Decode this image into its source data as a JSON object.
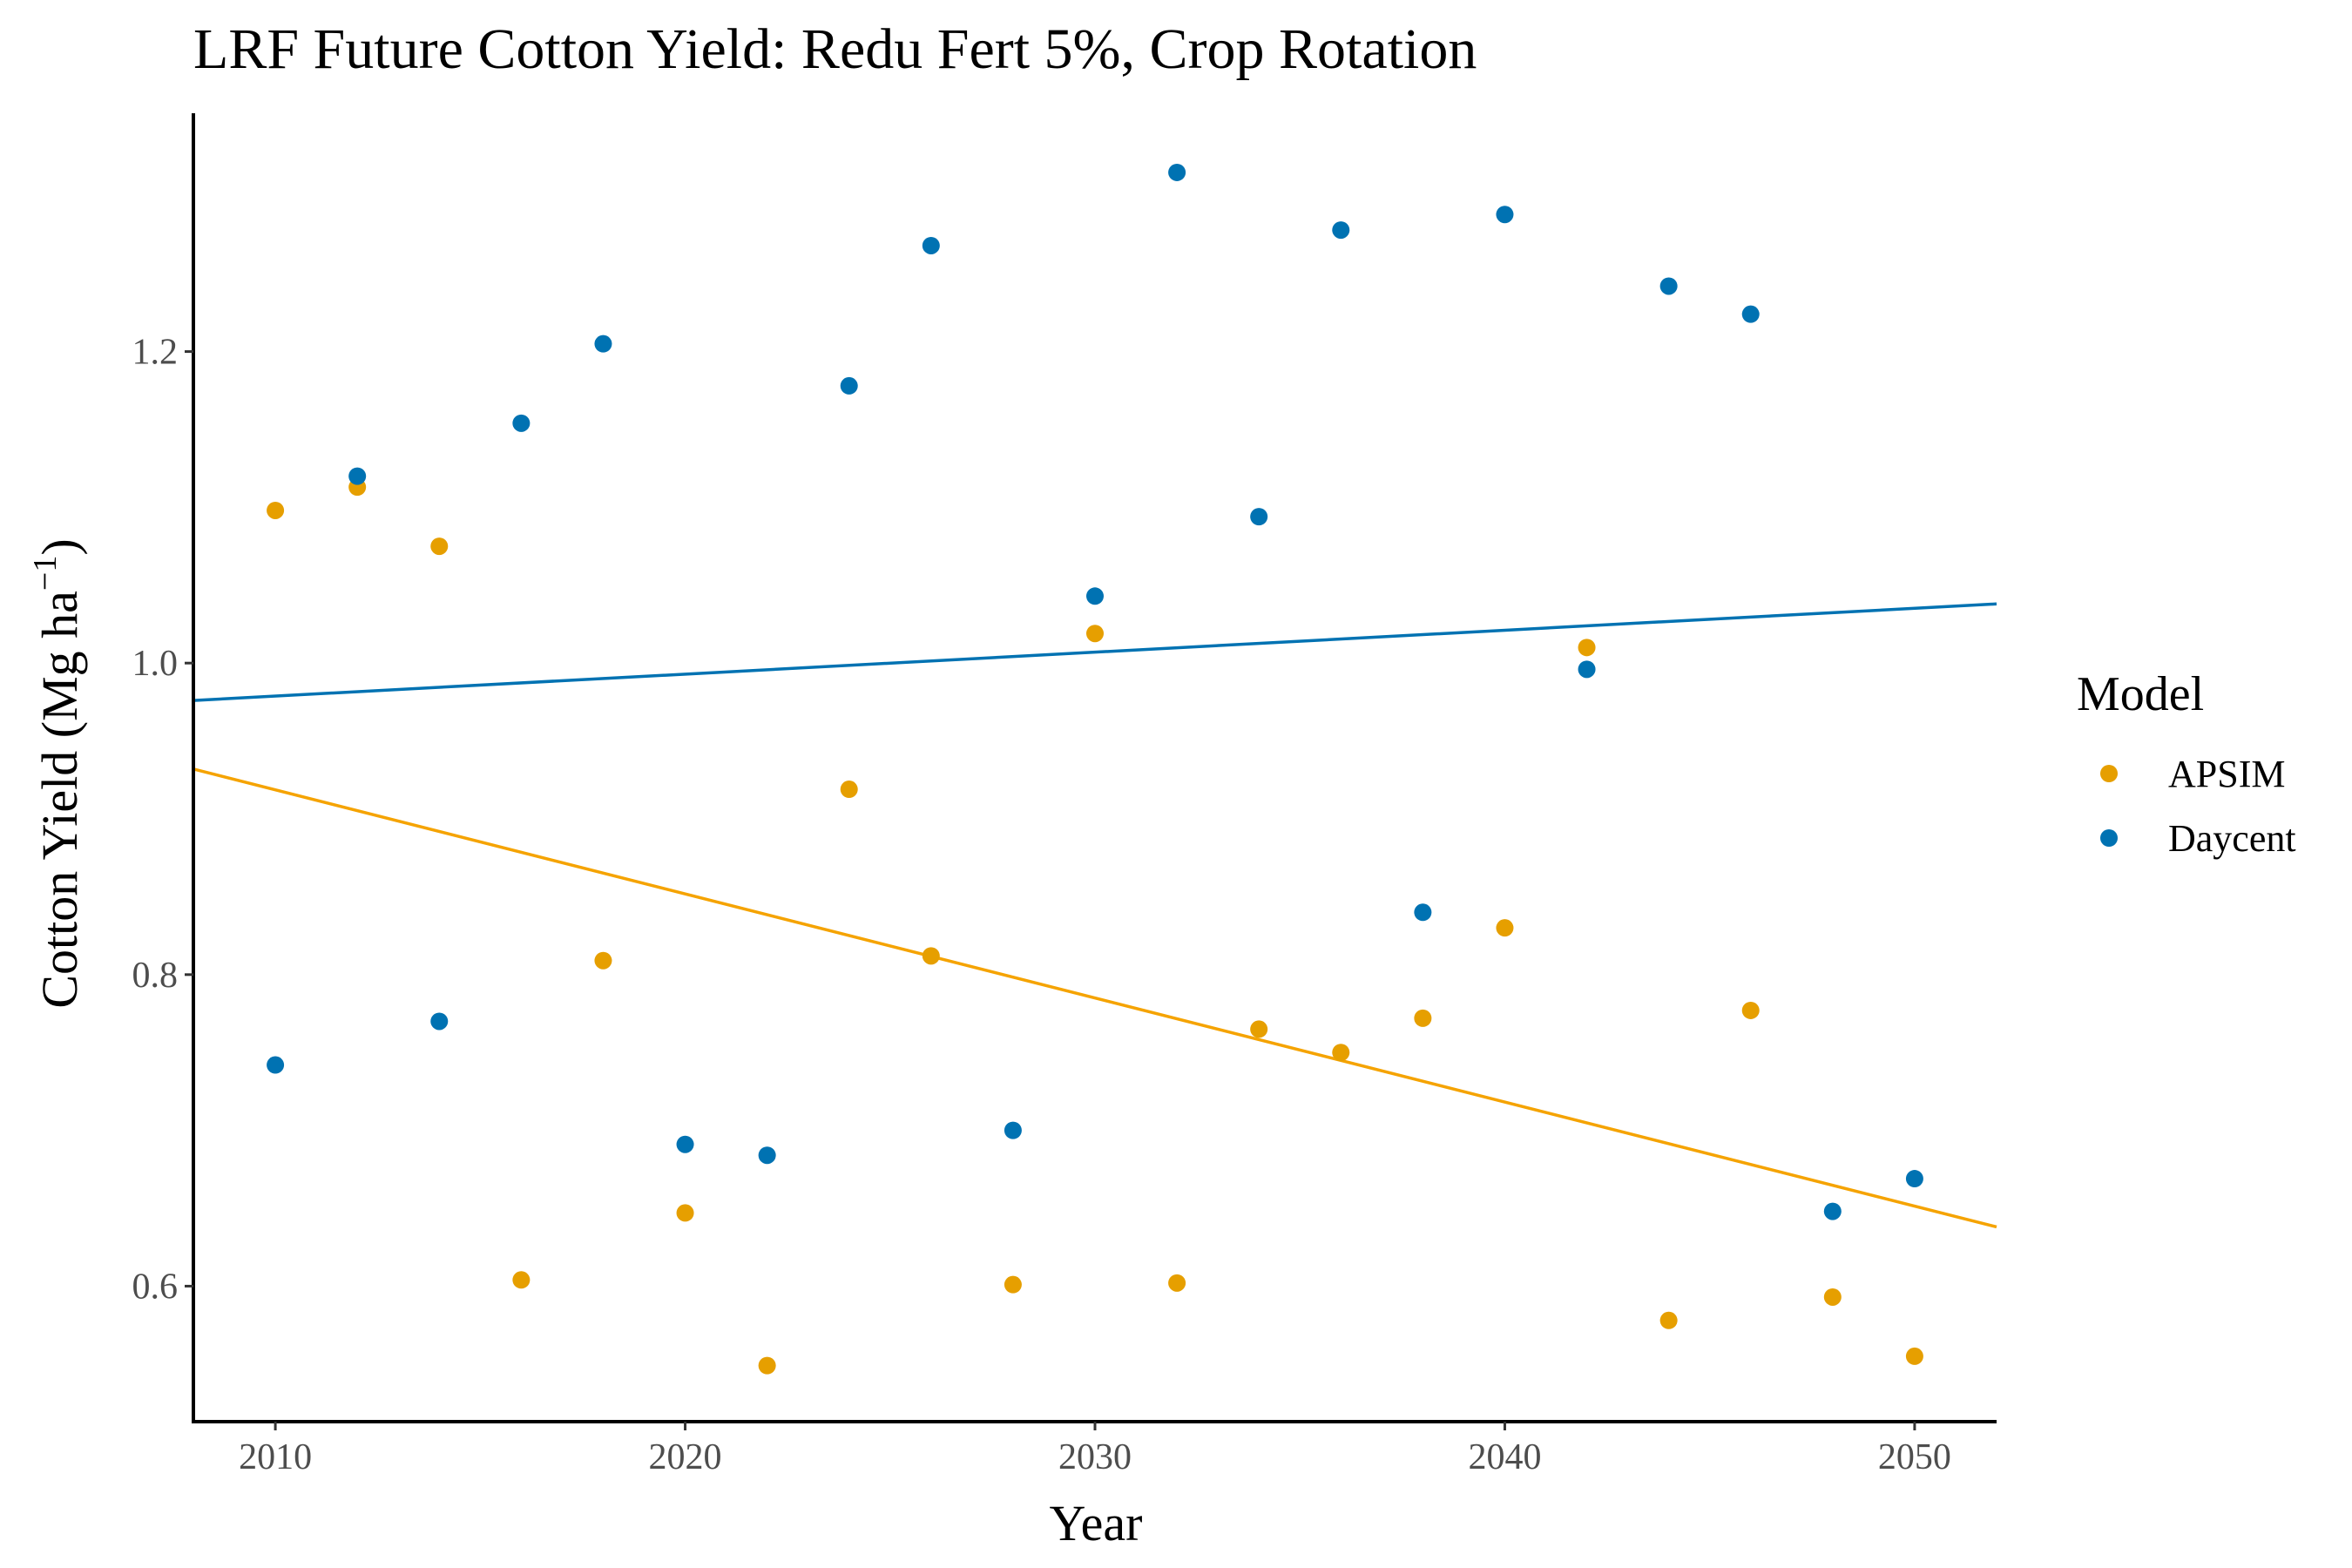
{
  "chart_data": {
    "type": "scatter",
    "title": "LRF Future Cotton Yield:  Redu Fert 5%, Crop Rotation",
    "xlabel": "Year",
    "ylabel_main": "Cotton Yield (Mg ha",
    "ylabel_sup": "−1",
    "ylabel_close": ")",
    "xlim": [
      2008,
      2052
    ],
    "ylim": [
      0.513,
      1.353
    ],
    "xticks": [
      2010,
      2020,
      2030,
      2040,
      2050
    ],
    "yticks": [
      0.6,
      0.8,
      1.0,
      1.2
    ],
    "ytick_labels": [
      "0.6",
      "0.8",
      "1.0",
      "1.2"
    ],
    "grid": false,
    "legend": {
      "title": "Model",
      "position": "right"
    },
    "series": [
      {
        "name": "APSIM",
        "color": "#E69F00",
        "line_color": "#F5A300",
        "points": [
          [
            2010,
            1.098
          ],
          [
            2012,
            1.113
          ],
          [
            2014,
            1.075
          ],
          [
            2016,
            0.604
          ],
          [
            2018,
            0.809
          ],
          [
            2020,
            0.647
          ],
          [
            2022,
            0.549
          ],
          [
            2024,
            0.919
          ],
          [
            2026,
            0.812
          ],
          [
            2028,
            0.601
          ],
          [
            2030,
            1.019
          ],
          [
            2032,
            0.602
          ],
          [
            2034,
            0.765
          ],
          [
            2036,
            0.75
          ],
          [
            2038,
            0.772
          ],
          [
            2040,
            0.83
          ],
          [
            2042,
            1.01
          ],
          [
            2044,
            0.578
          ],
          [
            2046,
            0.777
          ],
          [
            2048,
            0.593
          ],
          [
            2050,
            0.555
          ]
        ],
        "trend": [
          [
            2008,
            0.932
          ],
          [
            2052,
            0.638
          ]
        ]
      },
      {
        "name": "Daycent",
        "color": "#0072B2",
        "line_color": "#0072B2",
        "points": [
          [
            2010,
            0.742
          ],
          [
            2012,
            1.12
          ],
          [
            2014,
            0.77
          ],
          [
            2016,
            1.154
          ],
          [
            2018,
            1.205
          ],
          [
            2020,
            0.691
          ],
          [
            2022,
            0.684
          ],
          [
            2024,
            1.178
          ],
          [
            2026,
            1.268
          ],
          [
            2028,
            0.7
          ],
          [
            2030,
            1.043
          ],
          [
            2032,
            1.315
          ],
          [
            2034,
            1.094
          ],
          [
            2036,
            1.278
          ],
          [
            2038,
            0.84
          ],
          [
            2040,
            1.288
          ],
          [
            2042,
            0.996
          ],
          [
            2044,
            1.242
          ],
          [
            2046,
            1.224
          ],
          [
            2048,
            0.648
          ],
          [
            2050,
            0.669
          ]
        ],
        "trend": [
          [
            2008,
            0.976
          ],
          [
            2052,
            1.038
          ]
        ]
      }
    ]
  }
}
